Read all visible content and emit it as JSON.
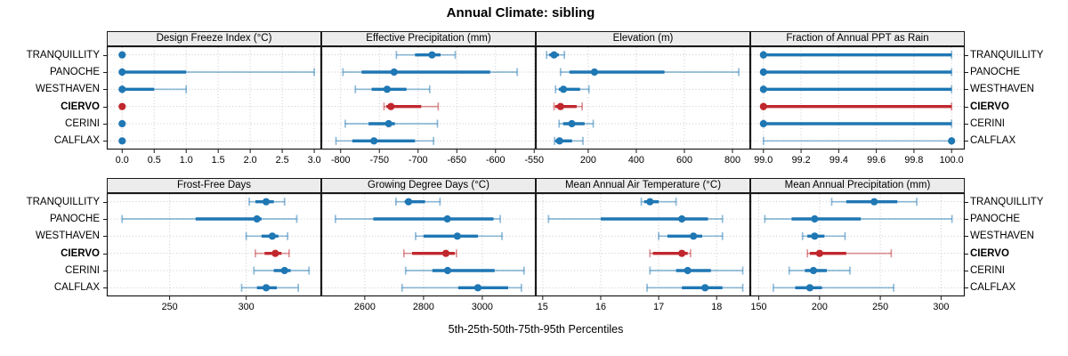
{
  "title": "Annual Climate: sibling",
  "caption": "5th-25th-50th-75th-95th Percentiles",
  "chart_data": {
    "type": "dotplot",
    "subtype": "trellis-percentile-whisker",
    "percentiles": [
      5,
      25,
      50,
      75,
      95
    ],
    "sites": [
      "TRANQUILLITY",
      "PANOCHE",
      "WESTHAVEN",
      "CIERVO",
      "CERINI",
      "CALFLAX"
    ],
    "highlight_site": "CIERVO",
    "legend": "none",
    "grid": "dotted",
    "colors": {
      "series": "#1F77B4",
      "series_light": "rgba(31,119,180,0.5)",
      "highlight": "#C0272D",
      "highlight_light": "rgba(192,39,45,0.5)",
      "strip_bg": "#ECECEC",
      "gridline": "#C9C9C9",
      "border": "#1a1a1a"
    },
    "panels": [
      {
        "title": "Design Freeze Index (°C)",
        "row": 0,
        "col": 0,
        "xlim": [
          -0.24,
          3.11
        ],
        "ticks": [
          0,
          0.5,
          1,
          1.5,
          2,
          2.5,
          3
        ],
        "tick_labels": [
          "0.0",
          "0.5",
          "1.0",
          "1.5",
          "2.0",
          "2.5",
          "3.0"
        ],
        "values": [
          [
            0,
            0,
            0,
            0,
            0
          ],
          [
            0,
            0,
            0,
            1.0,
            3.0
          ],
          [
            0,
            0,
            0,
            0.5,
            1.0
          ],
          [
            0,
            0,
            0,
            0,
            0
          ],
          [
            0,
            0,
            0,
            0,
            0
          ],
          [
            0,
            0,
            0,
            0,
            0
          ]
        ]
      },
      {
        "title": "Effective Precipitation (mm)",
        "row": 0,
        "col": 1,
        "xlim": [
          -825,
          -548
        ],
        "ticks": [
          -800,
          -750,
          -700,
          -650,
          -600,
          -550
        ],
        "tick_labels": [
          "-800",
          "-750",
          "-700",
          "-650",
          "-600",
          "-550"
        ],
        "values": [
          [
            -728,
            -704,
            -682,
            -671,
            -652
          ],
          [
            -797,
            -773,
            -731,
            -607,
            -572
          ],
          [
            -781,
            -760,
            -740,
            -715,
            -685
          ],
          [
            -744,
            -741,
            -735,
            -696,
            -674
          ],
          [
            -794,
            -764,
            -738,
            -730,
            -675
          ],
          [
            -806,
            -785,
            -757,
            -704,
            -680
          ]
        ]
      },
      {
        "title": "Elevation (m)",
        "row": 0,
        "col": 2,
        "xlim": [
          -18,
          874
        ],
        "ticks": [
          200,
          400,
          600,
          800
        ],
        "tick_labels": [
          "200",
          "400",
          "600",
          "800"
        ],
        "values": [
          [
            27,
            38,
            58,
            78,
            101
          ],
          [
            85,
            122,
            226,
            517,
            826
          ],
          [
            64,
            78,
            97,
            166,
            203
          ],
          [
            58,
            63,
            85,
            152,
            175
          ],
          [
            79,
            96,
            132,
            185,
            221
          ],
          [
            60,
            63,
            81,
            133,
            178
          ]
        ]
      },
      {
        "title": "Fraction of Annual PPT as Rain",
        "row": 0,
        "col": 3,
        "xlim": [
          98.93,
          100.07
        ],
        "ticks": [
          99.0,
          99.2,
          99.4,
          99.6,
          99.8,
          100.0
        ],
        "tick_labels": [
          "99.0",
          "99.2",
          "99.4",
          "99.6",
          "99.8",
          "100.0"
        ],
        "values": [
          [
            99,
            99,
            99,
            100,
            100
          ],
          [
            99,
            99,
            99,
            100,
            100
          ],
          [
            99,
            99,
            99,
            100,
            100
          ],
          [
            99,
            99,
            99,
            100,
            100
          ],
          [
            99,
            99,
            99,
            100,
            100
          ],
          [
            99,
            100,
            100,
            100,
            100
          ]
        ]
      },
      {
        "title": "Frost-Free Days",
        "row": 1,
        "col": 0,
        "xlim": [
          209,
          349
        ],
        "ticks": [
          250,
          300
        ],
        "tick_labels": [
          "250",
          "300"
        ],
        "values": [
          [
            302,
            306,
            313,
            318,
            325
          ],
          [
            219,
            267,
            307,
            310,
            333
          ],
          [
            300,
            310,
            317,
            321,
            327
          ],
          [
            306,
            312,
            319,
            323,
            328
          ],
          [
            305,
            318,
            325,
            329,
            341
          ],
          [
            297,
            307,
            313,
            320,
            334
          ]
        ]
      },
      {
        "title": "Growing Degree Days (°C)",
        "row": 1,
        "col": 1,
        "xlim": [
          2452,
          3182
        ],
        "ticks": [
          2600,
          2800,
          3000
        ],
        "tick_labels": [
          "2600",
          "2800",
          "3000"
        ],
        "values": [
          [
            2706,
            2736,
            2749,
            2805,
            2856
          ],
          [
            2500,
            2629,
            2881,
            3038,
            3061
          ],
          [
            2773,
            2800,
            2915,
            2985,
            3067
          ],
          [
            2733,
            2761,
            2876,
            2906,
            2912
          ],
          [
            2739,
            2830,
            2882,
            3042,
            3142
          ],
          [
            2727,
            2918,
            2985,
            3088,
            3133
          ]
        ]
      },
      {
        "title": "Mean Annual Air Temperature (°C)",
        "row": 1,
        "col": 2,
        "xlim": [
          14.88,
          18.58
        ],
        "ticks": [
          15,
          16,
          17,
          18
        ],
        "tick_labels": [
          "15",
          "16",
          "17",
          "18"
        ],
        "values": [
          [
            16.7,
            16.75,
            16.85,
            17.0,
            17.3
          ],
          [
            15.1,
            16.0,
            17.4,
            17.85,
            18.1
          ],
          [
            17.0,
            17.15,
            17.6,
            17.75,
            18.1
          ],
          [
            16.85,
            16.9,
            17.4,
            17.5,
            17.55
          ],
          [
            16.85,
            17.3,
            17.5,
            17.9,
            18.45
          ],
          [
            16.8,
            17.4,
            17.8,
            18.1,
            18.45
          ]
        ]
      },
      {
        "title": "Mean Annual Precipitation (mm)",
        "row": 1,
        "col": 3,
        "xlim": [
          143,
          319.5
        ],
        "ticks": [
          150,
          200,
          250,
          300
        ],
        "tick_labels": [
          "150",
          "200",
          "250",
          "300"
        ],
        "values": [
          [
            210,
            222,
            245,
            264,
            280
          ],
          [
            155,
            177,
            196,
            234,
            309
          ],
          [
            186,
            190,
            196,
            204,
            221
          ],
          [
            190,
            192,
            200,
            222,
            259
          ],
          [
            175,
            188,
            195,
            206,
            225
          ],
          [
            162,
            180,
            192,
            202,
            261
          ]
        ]
      }
    ]
  }
}
